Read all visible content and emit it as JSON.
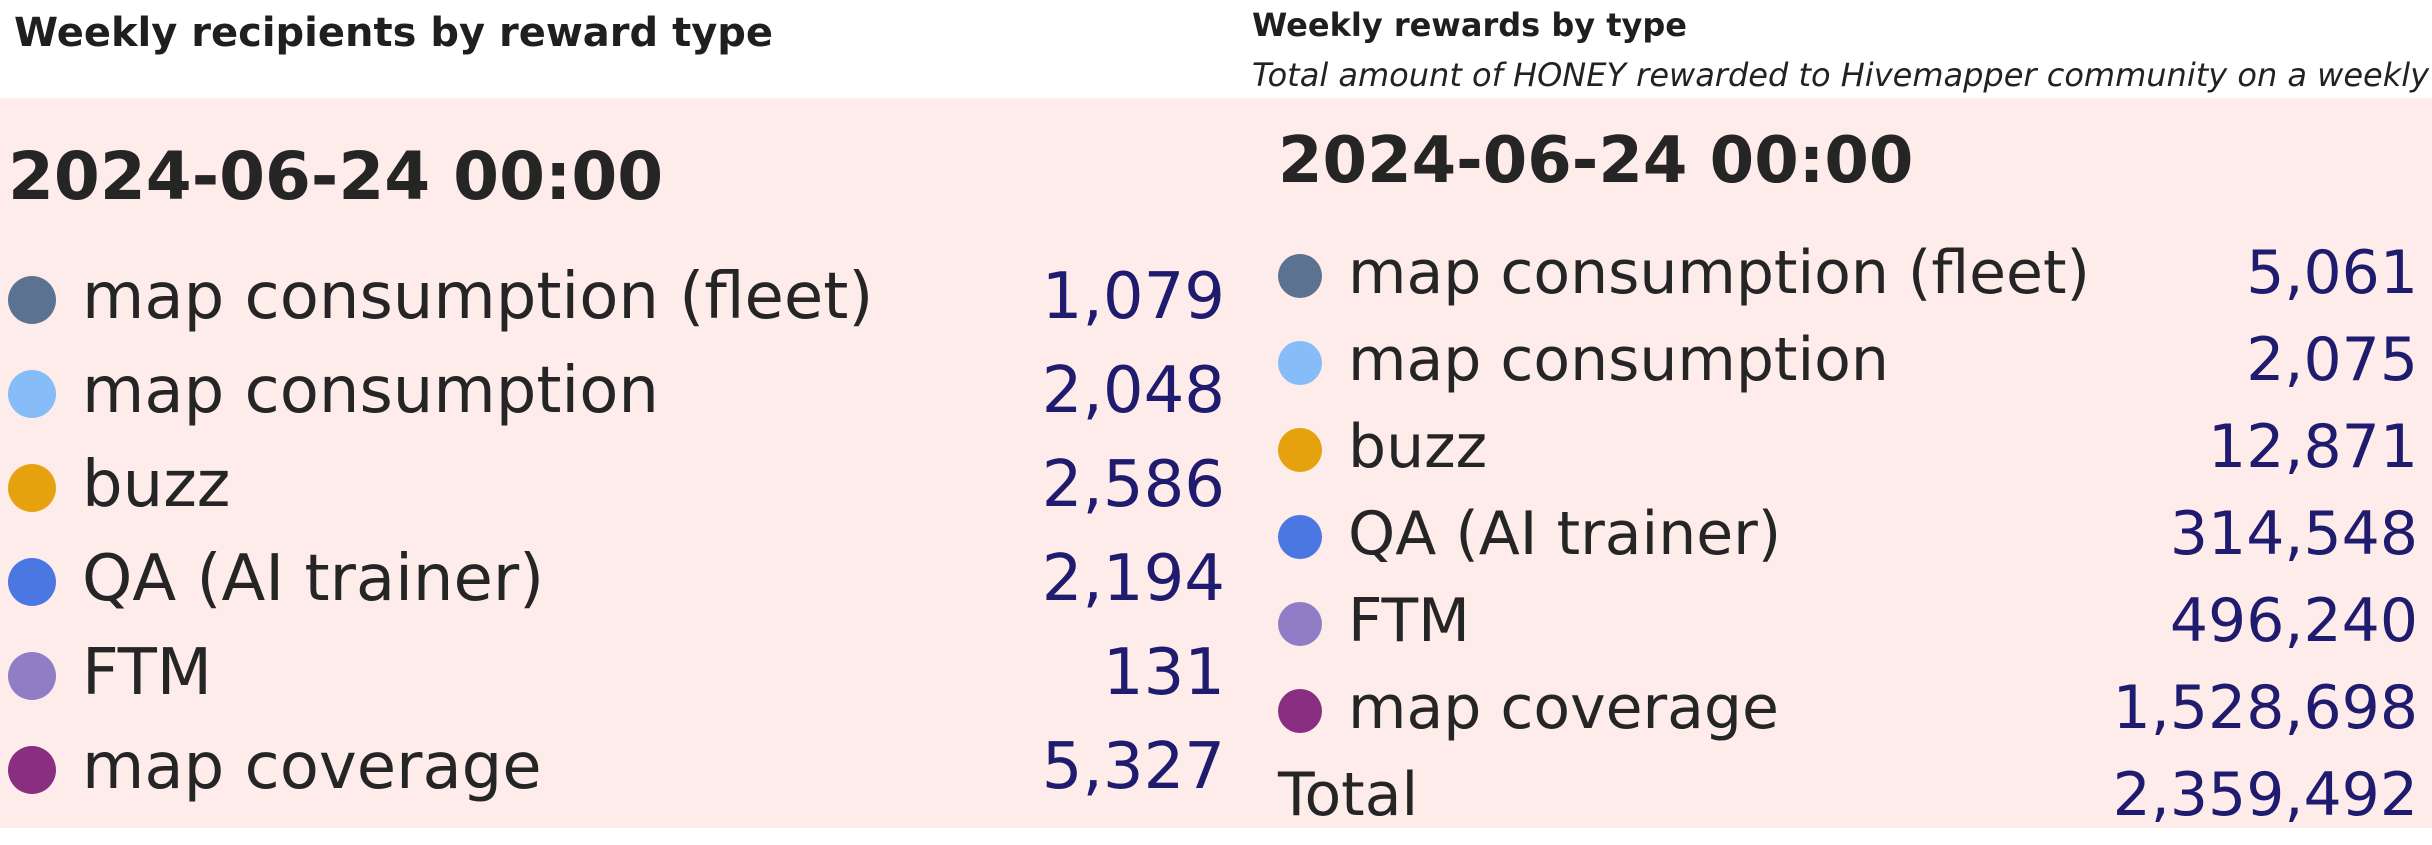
{
  "chart_data": [
    {
      "type": "table",
      "title": "Weekly recipients by reward type",
      "subtitle": "",
      "date": "2024-06-24 00:00",
      "series": [
        {
          "name": "map consumption (fleet)",
          "value": 1079,
          "display": "1,079",
          "color": "#5b7391"
        },
        {
          "name": "map consumption",
          "value": 2048,
          "display": "2,048",
          "color": "#86bdf8"
        },
        {
          "name": "buzz",
          "value": 2586,
          "display": "2,586",
          "color": "#e6a10e"
        },
        {
          "name": "QA (AI trainer)",
          "value": 2194,
          "display": "2,194",
          "color": "#4b77e3"
        },
        {
          "name": "FTM",
          "value": 131,
          "display": "131",
          "color": "#8f7ec6"
        },
        {
          "name": "map coverage",
          "value": 5327,
          "display": "5,327",
          "color": "#8a2e82"
        }
      ]
    },
    {
      "type": "table",
      "title": "Weekly rewards by type",
      "subtitle": "Total amount of HONEY rewarded to Hivemapper community on a weekly basis",
      "date": "2024-06-24 00:00",
      "series": [
        {
          "name": "map consumption (fleet)",
          "value": 5061,
          "display": "5,061",
          "color": "#5b7391"
        },
        {
          "name": "map consumption",
          "value": 2075,
          "display": "2,075",
          "color": "#86bdf8"
        },
        {
          "name": "buzz",
          "value": 12871,
          "display": "12,871",
          "color": "#e6a10e"
        },
        {
          "name": "QA (AI trainer)",
          "value": 314548,
          "display": "314,548",
          "color": "#4b77e3"
        },
        {
          "name": "FTM",
          "value": 496240,
          "display": "496,240",
          "color": "#8f7ec6"
        },
        {
          "name": "map coverage",
          "value": 1528698,
          "display": "1,528,698",
          "color": "#8a2e82"
        }
      ],
      "total": {
        "label": "Total",
        "value": 2359492,
        "display": "2,359,492"
      }
    }
  ]
}
